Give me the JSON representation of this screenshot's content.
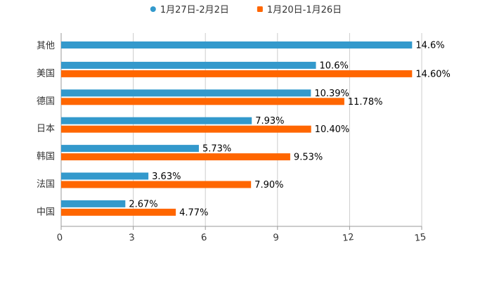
{
  "chart_data": {
    "type": "bar",
    "orientation": "horizontal",
    "categories": [
      "其他",
      "美国",
      "德国",
      "日本",
      "韩国",
      "法国",
      "中国"
    ],
    "series": [
      {
        "name": "1月27日-2月2日",
        "color": "#3399cc",
        "values": [
          14.6,
          10.6,
          10.39,
          7.93,
          5.73,
          3.63,
          2.67
        ],
        "labels": [
          "14.6%",
          "10.6%",
          "10.39%",
          "7.93%",
          "5.73%",
          "3.63%",
          "2.67%"
        ]
      },
      {
        "name": "1月20日-1月26日",
        "color": "#ff6600",
        "values": [
          null,
          14.6,
          11.78,
          10.4,
          9.53,
          7.9,
          4.77
        ],
        "labels": [
          null,
          "14.60%",
          "11.78%",
          "10.40%",
          "9.53%",
          "7.90%",
          "4.77%"
        ]
      }
    ],
    "xlim": [
      0,
      15
    ],
    "xticks": [
      0,
      3,
      6,
      9,
      12,
      15
    ],
    "xtick_labels": [
      "0",
      "3",
      "6",
      "9",
      "12",
      "15"
    ],
    "grid": true,
    "legend_position": "top-center",
    "title": "",
    "xlabel": "",
    "ylabel": ""
  }
}
